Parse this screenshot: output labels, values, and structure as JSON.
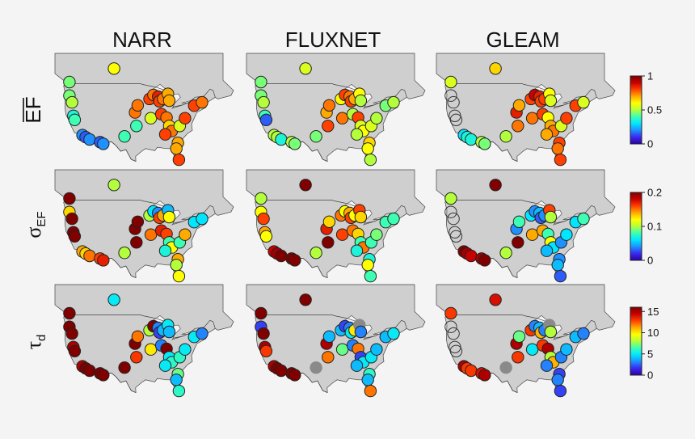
{
  "chart_data": {
    "type": "map-scatter",
    "columns": [
      "NARR",
      "FLUXNET",
      "GLEAM"
    ],
    "colorbars": [
      {
        "ticks": [
          "1",
          "0.5",
          "0"
        ],
        "tick_values": [
          1,
          0.5,
          0
        ],
        "range": [
          0,
          1
        ]
      },
      {
        "ticks": [
          "0.2",
          "0.1",
          "0"
        ],
        "tick_values": [
          0.2,
          0.1,
          0
        ],
        "range": [
          0,
          0.2
        ]
      },
      {
        "ticks": [
          "15",
          "10",
          "5",
          "0"
        ],
        "tick_values": [
          15,
          10,
          5,
          0
        ],
        "range": [
          0,
          16
        ]
      }
    ],
    "colormap": [
      "#2a00a8",
      "#3b28f0",
      "#1e90ff",
      "#00e6ff",
      "#3cffb4",
      "#b4ff3c",
      "#ffff00",
      "#ffaa00",
      "#ff4000",
      "#c80000",
      "#800000"
    ],
    "sites": [
      {
        "lon": -122.5,
        "lat": 49.5
      },
      {
        "lon": -105.5,
        "lat": 53.5
      },
      {
        "lon": -122.5,
        "lat": 45.5
      },
      {
        "lon": -121.5,
        "lat": 43.5
      },
      {
        "lon": -121.0,
        "lat": 39.5
      },
      {
        "lon": -120.5,
        "lat": 38.3
      },
      {
        "lon": -117.5,
        "lat": 33.8
      },
      {
        "lon": -116.3,
        "lat": 33.2
      },
      {
        "lon": -114.8,
        "lat": 32.5
      },
      {
        "lon": -110.8,
        "lat": 31.7
      },
      {
        "lon": -109.6,
        "lat": 31.2
      },
      {
        "lon": -101.5,
        "lat": 33.4
      },
      {
        "lon": -97.0,
        "lat": 36.5
      },
      {
        "lon": -97.5,
        "lat": 40.5
      },
      {
        "lon": -96.5,
        "lat": 42.6
      },
      {
        "lon": -91.5,
        "lat": 38.8
      },
      {
        "lon": -92.0,
        "lat": 44.5
      },
      {
        "lon": -90.5,
        "lat": 45.7
      },
      {
        "lon": -88.7,
        "lat": 45.2
      },
      {
        "lon": -88.2,
        "lat": 43.8
      },
      {
        "lon": -86.8,
        "lat": 44.5
      },
      {
        "lon": -85.0,
        "lat": 46.0
      },
      {
        "lon": -84.5,
        "lat": 44.0
      },
      {
        "lon": -87.5,
        "lat": 40.0
      },
      {
        "lon": -85.5,
        "lat": 39.0
      },
      {
        "lon": -84.5,
        "lat": 36.5
      },
      {
        "lon": -83.5,
        "lat": 35.0
      },
      {
        "lon": -86.0,
        "lat": 34.0
      },
      {
        "lon": -80.5,
        "lat": 36.5
      },
      {
        "lon": -78.5,
        "lat": 38.8
      },
      {
        "lon": -75.0,
        "lat": 42.5
      },
      {
        "lon": -72.0,
        "lat": 43.5
      },
      {
        "lon": -81.2,
        "lat": 31.5
      },
      {
        "lon": -81.8,
        "lat": 29.8
      },
      {
        "lon": -80.8,
        "lat": 26.5
      }
    ],
    "values": {
      "NARR": {
        "EF": [
          0.45,
          0.6,
          0.45,
          0.5,
          0.35,
          0.4,
          0.2,
          0.15,
          0.2,
          0.15,
          0.2,
          0.4,
          0.4,
          0.75,
          0.75,
          0.55,
          0.8,
          0.75,
          0.85,
          0.8,
          0.75,
          0.7,
          0.7,
          0.8,
          0.75,
          0.65,
          0.75,
          0.8,
          0.55,
          0.8,
          0.8,
          0.75,
          0.7,
          0.7,
          0.8
        ],
        "SIGMA": [
          0.2,
          0.1,
          0.13,
          0.2,
          0.2,
          0.2,
          0.14,
          0.13,
          0.15,
          0.16,
          0.17,
          0.1,
          0.2,
          0.2,
          0.2,
          0.15,
          0.1,
          0.06,
          0.04,
          0.16,
          0.14,
          0.05,
          0.12,
          0.17,
          0.16,
          0.08,
          0.12,
          0.07,
          0.08,
          0.14,
          0.06,
          0.06,
          0.14,
          0.1,
          0.12
        ],
        "TAU": [
          16,
          5,
          16,
          16,
          15,
          16,
          15,
          16,
          16,
          16,
          16,
          16,
          13,
          16,
          12,
          10,
          8,
          16,
          3,
          2,
          4,
          5,
          4,
          3,
          16,
          5,
          6,
          5,
          6,
          5,
          5,
          3,
          7,
          4,
          6
        ]
      },
      "FLUXNET": {
        "EF": [
          0.45,
          0.55,
          0.45,
          0.5,
          0.4,
          0.15,
          0.5,
          0.5,
          0.35,
          0.5,
          0.45,
          0.45,
          0.8,
          0.7,
          0.75,
          0.75,
          0.6,
          0.8,
          0.75,
          0.8,
          0.7,
          0.6,
          0.5,
          0.5,
          0.8,
          0.55,
          0.6,
          0.5,
          0.55,
          0.5,
          0.45,
          0.5,
          0.65,
          0.6,
          0.5
        ],
        "SIGMA": [
          0.1,
          0.2,
          0.12,
          0.16,
          0.14,
          0.12,
          0.18,
          0.19,
          0.2,
          0.2,
          0.2,
          0.1,
          0.2,
          0.17,
          0.13,
          0.16,
          0.15,
          0.12,
          0.14,
          0.16,
          0.12,
          0.16,
          0.13,
          0.15,
          0.13,
          0.08,
          0.15,
          0.07,
          0.08,
          0.09,
          0.08,
          0.08,
          0.07,
          0.12,
          0.08
        ],
        "TAU": [
          16,
          16,
          2,
          16,
          15,
          13,
          15,
          16,
          16,
          16,
          16,
          null,
          12,
          15,
          4,
          7,
          4,
          2,
          3,
          5,
          10,
          null,
          3,
          3,
          12,
          2,
          5,
          4,
          5,
          4,
          4,
          5,
          6,
          4,
          12
        ]
      },
      "GLEAM": {
        "EF": [
          0.55,
          0.65,
          null,
          null,
          null,
          null,
          0.3,
          0.35,
          0.35,
          0.5,
          0.45,
          0.5,
          0.75,
          0.85,
          0.7,
          0.75,
          0.8,
          0.9,
          0.85,
          0.8,
          0.8,
          0.6,
          0.55,
          0.8,
          0.6,
          0.7,
          0.75,
          0.7,
          0.55,
          0.8,
          0.8,
          0.55,
          0.8,
          0.75,
          0.8
        ],
        "SIGMA": [
          0.1,
          0.2,
          null,
          null,
          null,
          null,
          0.2,
          0.19,
          0.18,
          0.19,
          0.2,
          0.1,
          0.2,
          0.04,
          0.08,
          0.14,
          0.06,
          0.04,
          0.05,
          0.03,
          0.04,
          0.16,
          0.1,
          0.14,
          0.08,
          0.12,
          0.06,
          0.05,
          0.04,
          0.06,
          0.06,
          0.08,
          0.04,
          0.05,
          0.03
        ],
        "TAU": [
          13,
          14,
          null,
          null,
          null,
          null,
          15,
          13,
          13,
          14,
          15,
          null,
          13,
          15,
          7,
          5,
          13,
          3,
          4,
          11,
          3,
          null,
          8,
          13,
          15,
          8,
          11,
          3,
          3,
          4,
          4,
          3,
          2,
          3,
          2
        ]
      }
    }
  }
}
